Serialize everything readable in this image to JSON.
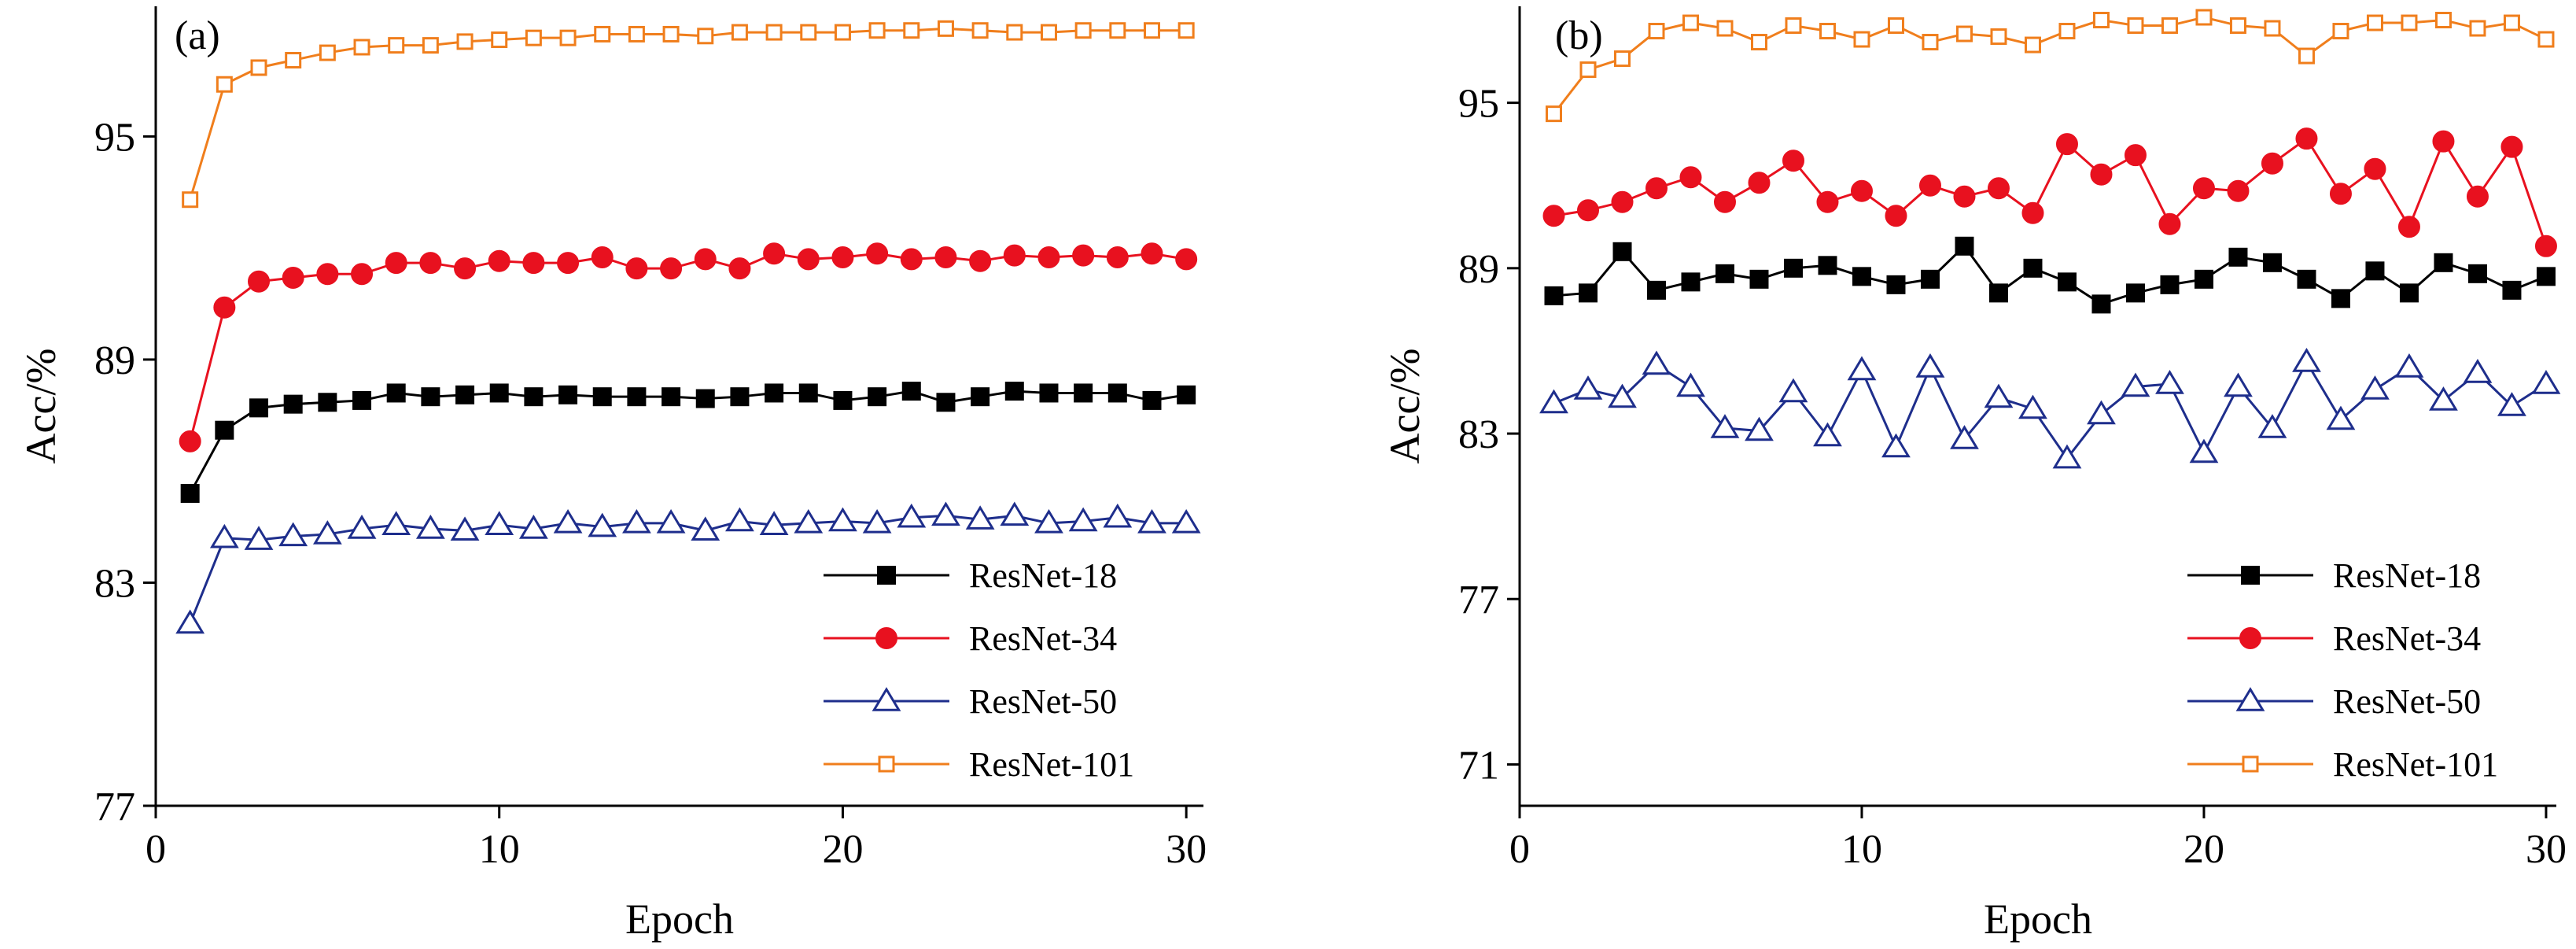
{
  "chart_data": [
    {
      "type": "line",
      "panel_label": "(a)",
      "xlabel": "Epoch",
      "ylabel": "Acc/%",
      "xlim": [
        0,
        30.5
      ],
      "ylim": [
        77,
        98.5
      ],
      "xticks": [
        0,
        10,
        20,
        30
      ],
      "yticks": [
        77,
        83,
        89,
        95
      ],
      "legend_position": "bottom-right",
      "x": [
        1,
        2,
        3,
        4,
        5,
        6,
        7,
        8,
        9,
        10,
        11,
        12,
        13,
        14,
        15,
        16,
        17,
        18,
        19,
        20,
        21,
        22,
        23,
        24,
        25,
        26,
        27,
        28,
        29,
        30
      ],
      "series": [
        {
          "name": "ResNet-18",
          "color": "#000000",
          "marker": "filled-square",
          "values": [
            85.4,
            87.1,
            87.7,
            87.8,
            87.85,
            87.9,
            88.1,
            88.0,
            88.05,
            88.1,
            88.0,
            88.05,
            88.0,
            88.0,
            88.0,
            87.95,
            88.0,
            88.1,
            88.1,
            87.9,
            88.0,
            88.15,
            87.85,
            88.0,
            88.15,
            88.1,
            88.1,
            88.1,
            87.9,
            88.05
          ]
        },
        {
          "name": "ResNet-34",
          "color": "#e8111f",
          "marker": "filled-circle",
          "values": [
            86.8,
            90.4,
            91.1,
            91.2,
            91.3,
            91.3,
            91.6,
            91.6,
            91.45,
            91.65,
            91.6,
            91.6,
            91.75,
            91.45,
            91.45,
            91.7,
            91.45,
            91.85,
            91.7,
            91.75,
            91.85,
            91.7,
            91.75,
            91.65,
            91.8,
            91.75,
            91.8,
            91.75,
            91.85,
            91.7
          ]
        },
        {
          "name": "ResNet-50",
          "color": "#1e2e8c",
          "marker": "open-triangle",
          "values": [
            81.9,
            84.2,
            84.15,
            84.25,
            84.3,
            84.45,
            84.55,
            84.45,
            84.4,
            84.55,
            84.45,
            84.6,
            84.5,
            84.6,
            84.6,
            84.4,
            84.65,
            84.55,
            84.6,
            84.65,
            84.6,
            84.75,
            84.8,
            84.7,
            84.8,
            84.6,
            84.65,
            84.75,
            84.6,
            84.6
          ]
        },
        {
          "name": "ResNet-101",
          "color": "#f07e1c",
          "marker": "open-square",
          "values": [
            93.3,
            96.4,
            96.85,
            97.05,
            97.25,
            97.4,
            97.45,
            97.45,
            97.55,
            97.6,
            97.65,
            97.65,
            97.75,
            97.75,
            97.75,
            97.7,
            97.8,
            97.8,
            97.8,
            97.8,
            97.85,
            97.85,
            97.9,
            97.85,
            97.8,
            97.8,
            97.85,
            97.85,
            97.85,
            97.85
          ]
        }
      ]
    },
    {
      "type": "line",
      "panel_label": "(b)",
      "xlabel": "Epoch",
      "ylabel": "Acc/%",
      "xlim": [
        0,
        30.3
      ],
      "ylim": [
        69.5,
        98.5
      ],
      "xticks": [
        0,
        10,
        20,
        30
      ],
      "yticks": [
        71,
        77,
        83,
        89,
        95
      ],
      "legend_position": "bottom-right",
      "x": [
        1,
        2,
        3,
        4,
        5,
        6,
        7,
        8,
        9,
        10,
        11,
        12,
        13,
        14,
        15,
        16,
        17,
        18,
        19,
        20,
        21,
        22,
        23,
        24,
        25,
        26,
        27,
        28,
        29,
        30
      ],
      "series": [
        {
          "name": "ResNet-18",
          "color": "#000000",
          "marker": "filled-square",
          "values": [
            88.0,
            88.1,
            89.6,
            88.2,
            88.5,
            88.8,
            88.6,
            89.0,
            89.1,
            88.7,
            88.4,
            88.6,
            89.8,
            88.1,
            89.0,
            88.5,
            87.7,
            88.1,
            88.4,
            88.6,
            89.4,
            89.2,
            88.6,
            87.9,
            88.9,
            88.1,
            89.2,
            88.8,
            88.2,
            88.7
          ]
        },
        {
          "name": "ResNet-34",
          "color": "#e8111f",
          "marker": "filled-circle",
          "values": [
            90.9,
            91.1,
            91.4,
            91.9,
            92.3,
            91.4,
            92.1,
            92.9,
            91.4,
            91.8,
            90.9,
            92.0,
            91.6,
            91.9,
            91.0,
            93.5,
            92.4,
            93.1,
            90.6,
            91.9,
            91.8,
            92.8,
            93.7,
            91.7,
            92.6,
            90.5,
            93.6,
            91.6,
            93.4,
            89.8
          ]
        },
        {
          "name": "ResNet-50",
          "color": "#1e2e8c",
          "marker": "open-triangle",
          "values": [
            84.1,
            84.6,
            84.3,
            85.5,
            84.7,
            83.2,
            83.1,
            84.5,
            82.9,
            85.3,
            82.5,
            85.4,
            82.8,
            84.3,
            83.9,
            82.1,
            83.7,
            84.7,
            84.8,
            82.3,
            84.7,
            83.2,
            85.6,
            83.5,
            84.6,
            85.4,
            84.2,
            85.2,
            84.0,
            84.8
          ]
        },
        {
          "name": "ResNet-101",
          "color": "#f07e1c",
          "marker": "open-square",
          "values": [
            94.6,
            96.2,
            96.6,
            97.6,
            97.9,
            97.7,
            97.2,
            97.8,
            97.6,
            97.3,
            97.8,
            97.2,
            97.5,
            97.4,
            97.1,
            97.6,
            98.0,
            97.8,
            97.8,
            98.1,
            97.8,
            97.7,
            96.7,
            97.6,
            97.9,
            97.9,
            98.0,
            97.7,
            97.9,
            97.3
          ]
        }
      ]
    }
  ]
}
